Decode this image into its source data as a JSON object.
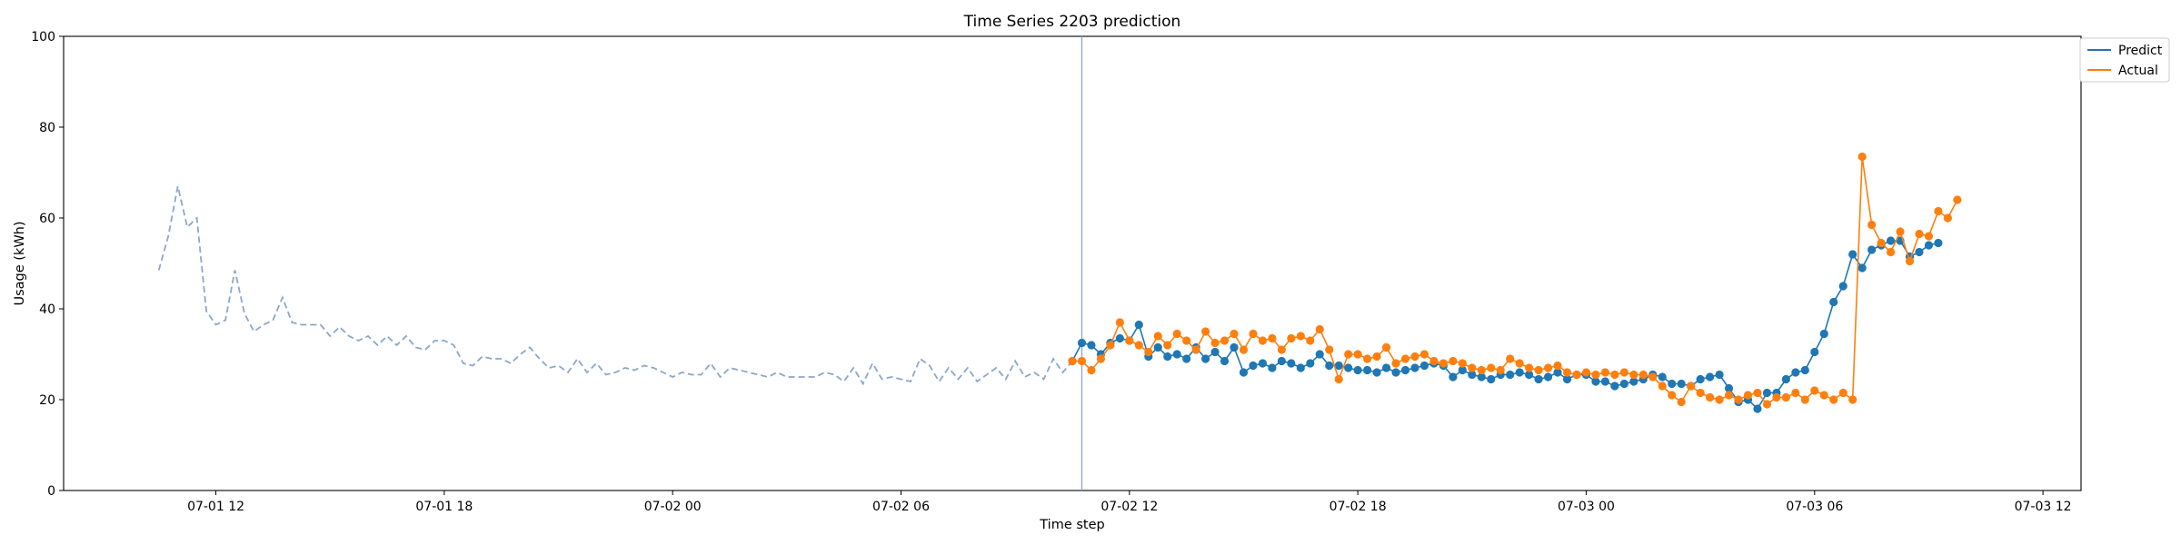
{
  "chart_data": {
    "type": "line",
    "title": "Time Series 2203 prediction",
    "xlabel": "Time step",
    "ylabel": "Usage (kWh)",
    "ylim": [
      0,
      100
    ],
    "yticks": [
      0,
      20,
      40,
      60,
      80,
      100
    ],
    "xlim": [
      "2024-07-01T08:00",
      "2024-07-03T13:00"
    ],
    "xticks": [
      {
        "t": "2024-07-01T12:00",
        "label": "07-01 12"
      },
      {
        "t": "2024-07-01T18:00",
        "label": "07-01 18"
      },
      {
        "t": "2024-07-02T00:00",
        "label": "07-02 00"
      },
      {
        "t": "2024-07-02T06:00",
        "label": "07-02 06"
      },
      {
        "t": "2024-07-02T12:00",
        "label": "07-02 12"
      },
      {
        "t": "2024-07-02T18:00",
        "label": "07-02 18"
      },
      {
        "t": "2024-07-03T00:00",
        "label": "07-03 00"
      },
      {
        "t": "2024-07-03T06:00",
        "label": "07-03 06"
      },
      {
        "t": "2024-07-03T12:00",
        "label": "07-03 12"
      }
    ],
    "grid": false,
    "legend_position": "outside-top-right",
    "interval_minutes": 15,
    "split_time": "2024-07-02T10:45",
    "series": [
      {
        "name": "",
        "style": "dashed",
        "color": "#8ea6c9",
        "start": "2024-07-01T10:30",
        "values": [
          48.5,
          56,
          67,
          58,
          60,
          39.5,
          36.5,
          37.5,
          48.5,
          39,
          35,
          36.5,
          37.5,
          42.5,
          37,
          36.5,
          36.5,
          36.5,
          34,
          36,
          34,
          33,
          34,
          32,
          34,
          32,
          34,
          31.5,
          31,
          33,
          33,
          32,
          28,
          27.5,
          29.5,
          29,
          29,
          28,
          30,
          31.5,
          29,
          27,
          27.5,
          26,
          29,
          26,
          28,
          25.5,
          26,
          27,
          26.5,
          27.5,
          27,
          26,
          25,
          26,
          25.5,
          25.5,
          28,
          25,
          27,
          26.5,
          26,
          25.5,
          25,
          26,
          25,
          25,
          25,
          25,
          26,
          25.5,
          24,
          27,
          23.5,
          28,
          24.5,
          25,
          24.5,
          24,
          29,
          27.5,
          24,
          27,
          24.5,
          27,
          24,
          25.5,
          27,
          24.5,
          28.5,
          25,
          26,
          24.5,
          29,
          26,
          28.5
        ]
      },
      {
        "name": "Predict",
        "style": "solid-marker",
        "color": "#1f77b4",
        "start": "2024-07-02T10:30",
        "values": [
          28.5,
          32.5,
          32,
          30,
          32.5,
          33.5,
          33,
          36.5,
          29.5,
          31.5,
          29.5,
          30,
          29,
          31.5,
          29,
          30.5,
          28.5,
          31.5,
          26,
          27.5,
          28,
          27,
          28.5,
          28,
          27,
          28,
          30,
          27.5,
          27.5,
          27,
          26.5,
          26.5,
          26,
          27,
          26,
          26.5,
          27,
          27.5,
          28,
          27.5,
          25,
          26.5,
          25.5,
          25,
          24.5,
          25.5,
          25.5,
          26,
          25.5,
          24.5,
          25,
          26,
          24.5,
          25.5,
          25.5,
          24,
          24,
          23,
          23.5,
          24,
          24.5,
          25.5,
          25,
          23.5,
          23.5,
          23,
          24.5,
          25,
          25.5,
          22.5,
          19.5,
          20,
          18,
          21.5,
          21.5,
          24.5,
          26,
          26.5,
          30.5,
          34.5,
          41.5,
          45,
          52,
          49,
          53,
          54,
          55,
          55,
          51.5,
          52.5,
          54,
          54.5
        ]
      },
      {
        "name": "Actual",
        "style": "solid-marker",
        "color": "#ff7f0e",
        "start": "2024-07-02T10:30",
        "values": [
          28.5,
          28.5,
          26.5,
          29,
          32,
          37,
          33,
          32,
          30.5,
          34,
          32,
          34.5,
          33,
          31,
          35,
          32.5,
          33,
          34.5,
          31,
          34.5,
          33,
          33.5,
          31,
          33.5,
          34,
          33,
          35.5,
          31,
          24.5,
          30,
          30,
          29,
          29.5,
          31.5,
          28,
          29,
          29.5,
          30,
          28.5,
          28,
          28.5,
          28,
          27,
          26.5,
          27,
          26.5,
          29,
          28,
          27,
          26.5,
          27,
          27.5,
          26,
          25.5,
          26,
          25.5,
          26,
          25.5,
          26,
          25.5,
          25.5,
          25,
          23,
          21,
          19.5,
          23,
          21.5,
          20.5,
          20,
          21,
          20,
          21,
          21.5,
          19,
          20.5,
          20.5,
          21.5,
          20,
          22,
          21,
          20,
          21.5,
          20,
          73.5,
          58.5,
          54.5,
          52.5,
          57,
          50.5,
          56.5,
          56,
          61.5,
          60,
          64
        ]
      }
    ]
  }
}
